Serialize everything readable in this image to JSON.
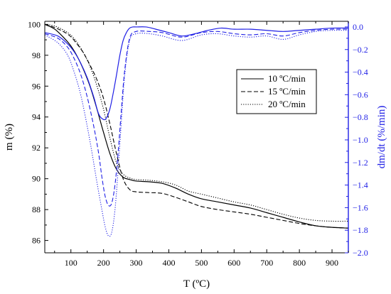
{
  "chart_data": {
    "type": "line",
    "xlabel": "T (ºC)",
    "ylabel_left": "m (%)",
    "ylabel_right": "dm/dt (%/min)",
    "xlim": [
      20,
      950
    ],
    "ylim_left": [
      85.2,
      100.2
    ],
    "ylim_right": [
      -2.0,
      0.05
    ],
    "x_ticks": [
      100,
      200,
      300,
      400,
      500,
      600,
      700,
      800,
      900
    ],
    "y_left_ticks": [
      86,
      88,
      90,
      92,
      94,
      96,
      98,
      100
    ],
    "y_right_ticks": [
      0.0,
      -0.2,
      -0.4,
      -0.6,
      -0.8,
      -1.0,
      -1.2,
      -1.4,
      -1.6,
      -1.8,
      -2.0
    ],
    "y_right_tick_labels": [
      "0.0",
      "−0.2",
      "−0.4",
      "−0.6",
      "−0.8",
      "−1.0",
      "−1.2",
      "−1.4",
      "−1.6",
      "−1.8",
      "−2.0"
    ],
    "grid": false,
    "legend_position": "upper-right",
    "legend": [
      "10 ºC/min",
      "15 ºC/min",
      "20 ºC/min"
    ],
    "colors": {
      "mass": "#000000",
      "derivative": "#1f1fe6"
    },
    "series": [
      {
        "name": "10 ºC/min",
        "axis": "left",
        "style": "solid",
        "x": [
          20,
          50,
          80,
          100,
          120,
          140,
          160,
          180,
          200,
          220,
          240,
          260,
          280,
          300,
          340,
          380,
          420,
          460,
          500,
          550,
          600,
          650,
          700,
          750,
          800,
          850,
          900,
          950
        ],
        "y": [
          100.0,
          99.7,
          99.1,
          98.6,
          97.9,
          97.0,
          95.9,
          94.5,
          93.0,
          91.6,
          90.6,
          90.1,
          89.95,
          89.85,
          89.8,
          89.7,
          89.4,
          89.0,
          88.7,
          88.5,
          88.3,
          88.1,
          87.8,
          87.5,
          87.2,
          86.95,
          86.85,
          86.8
        ]
      },
      {
        "name": "15 ºC/min",
        "axis": "left",
        "style": "dashed",
        "x": [
          20,
          50,
          80,
          100,
          120,
          140,
          160,
          180,
          200,
          220,
          240,
          260,
          280,
          300,
          340,
          380,
          420,
          460,
          500,
          550,
          600,
          650,
          700,
          750,
          800,
          850,
          900,
          950
        ],
        "y": [
          100.0,
          99.8,
          99.5,
          99.2,
          98.7,
          98.1,
          97.3,
          96.4,
          95.2,
          93.5,
          91.6,
          90.0,
          89.3,
          89.15,
          89.1,
          89.05,
          88.8,
          88.5,
          88.2,
          88.0,
          87.85,
          87.7,
          87.5,
          87.3,
          87.1,
          86.95,
          86.85,
          86.8
        ]
      },
      {
        "name": "20 ºC/min",
        "axis": "left",
        "style": "dotted",
        "x": [
          20,
          50,
          80,
          100,
          120,
          140,
          160,
          180,
          200,
          220,
          240,
          260,
          280,
          300,
          340,
          380,
          420,
          460,
          500,
          550,
          600,
          650,
          700,
          750,
          800,
          850,
          900,
          950
        ],
        "y": [
          100.0,
          99.9,
          99.6,
          99.3,
          98.8,
          98.1,
          97.2,
          96.0,
          94.5,
          92.6,
          91.0,
          90.3,
          90.05,
          89.95,
          89.9,
          89.8,
          89.6,
          89.2,
          89.0,
          88.75,
          88.5,
          88.3,
          88.0,
          87.7,
          87.45,
          87.3,
          87.25,
          87.25
        ]
      },
      {
        "name": "10 ºC/min dm/dt",
        "axis": "right",
        "style": "solid",
        "x": [
          20,
          60,
          90,
          110,
          130,
          150,
          170,
          185,
          200,
          210,
          220,
          230,
          240,
          250,
          260,
          270,
          280,
          290,
          300,
          330,
          360,
          400,
          440,
          480,
          520,
          560,
          600,
          650,
          700,
          750,
          800,
          850,
          900,
          950
        ],
        "y": [
          -0.05,
          -0.08,
          -0.15,
          -0.22,
          -0.32,
          -0.45,
          -0.62,
          -0.77,
          -0.82,
          -0.8,
          -0.72,
          -0.58,
          -0.42,
          -0.25,
          -0.12,
          -0.05,
          -0.01,
          0.0,
          0.0,
          0.0,
          -0.02,
          -0.05,
          -0.08,
          -0.06,
          -0.03,
          -0.01,
          -0.02,
          -0.02,
          -0.03,
          -0.04,
          -0.03,
          -0.02,
          -0.01,
          -0.01
        ]
      },
      {
        "name": "15 ºC/min dm/dt",
        "axis": "right",
        "style": "dashed",
        "x": [
          20,
          60,
          90,
          110,
          130,
          150,
          170,
          185,
          195,
          205,
          215,
          225,
          235,
          245,
          255,
          265,
          280,
          300,
          340,
          380,
          440,
          500,
          550,
          600,
          650,
          700,
          750,
          800,
          850,
          900,
          950
        ],
        "y": [
          -0.06,
          -0.1,
          -0.18,
          -0.28,
          -0.42,
          -0.62,
          -0.88,
          -1.12,
          -1.33,
          -1.5,
          -1.58,
          -1.56,
          -1.4,
          -1.1,
          -0.72,
          -0.38,
          -0.1,
          -0.04,
          -0.04,
          -0.05,
          -0.09,
          -0.05,
          -0.04,
          -0.06,
          -0.07,
          -0.06,
          -0.08,
          -0.05,
          -0.03,
          -0.02,
          -0.02
        ]
      },
      {
        "name": "20 ºC/min dm/dt",
        "axis": "right",
        "style": "dotted",
        "x": [
          20,
          60,
          90,
          110,
          130,
          150,
          165,
          180,
          195,
          205,
          215,
          225,
          235,
          245,
          255,
          265,
          280,
          300,
          340,
          380,
          440,
          500,
          550,
          600,
          650,
          700,
          750,
          800,
          850,
          900,
          950
        ],
        "y": [
          -0.07,
          -0.14,
          -0.25,
          -0.4,
          -0.6,
          -0.88,
          -1.12,
          -1.38,
          -1.62,
          -1.77,
          -1.85,
          -1.82,
          -1.62,
          -1.25,
          -0.82,
          -0.42,
          -0.12,
          -0.06,
          -0.06,
          -0.08,
          -0.12,
          -0.07,
          -0.06,
          -0.08,
          -0.09,
          -0.08,
          -0.11,
          -0.07,
          -0.04,
          -0.03,
          -0.03
        ]
      }
    ]
  }
}
